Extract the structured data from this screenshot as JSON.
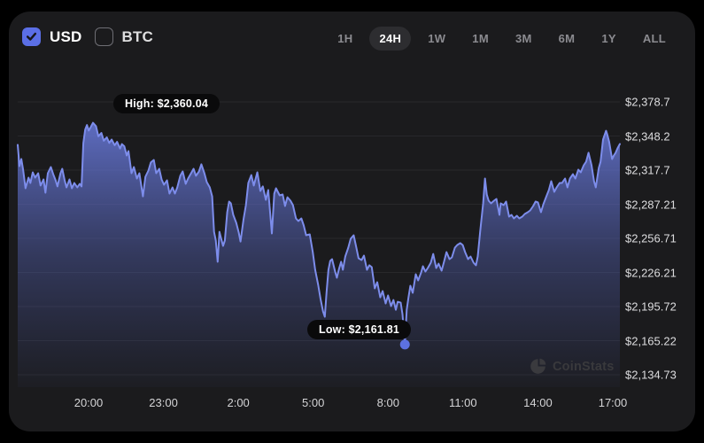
{
  "header": {
    "currency_toggles": [
      {
        "label": "USD",
        "checked": true
      },
      {
        "label": "BTC",
        "checked": false
      }
    ],
    "range_buttons": [
      "1H",
      "24H",
      "1W",
      "1M",
      "3M",
      "6M",
      "1Y",
      "ALL"
    ],
    "active_range": "24H"
  },
  "watermark": {
    "label": "CoinStats"
  },
  "colors": {
    "card_bg": "#1b1b1d",
    "accent_blue": "#5b6fe6",
    "line": "#7d8deb",
    "dot": "#5c71e0",
    "gridline": "#28282b",
    "tooltip_bg": "#0a0a0b"
  },
  "chart_data": {
    "type": "area",
    "title": "24H price chart (USD)",
    "grid": "horizontal",
    "legend": "none",
    "x_ticks": [
      "20:00",
      "23:00",
      "2:00",
      "5:00",
      "8:00",
      "11:00",
      "14:00",
      "17:00"
    ],
    "y_ticks": [
      "$2,378.7",
      "$2,348.2",
      "$2,317.7",
      "$2,287.21",
      "$2,256.71",
      "$2,226.21",
      "$2,195.72",
      "$2,165.22",
      "$2,134.73"
    ],
    "y_range": [
      2134.73,
      2378.7
    ],
    "high": 2360.04,
    "low": 2161.81,
    "high_label": "High: $2,360.04",
    "low_label": "Low: $2,161.81",
    "points": [
      [
        0,
        2340.3
      ],
      [
        0.3,
        2321.3
      ],
      [
        0.6,
        2327.6
      ],
      [
        0.9,
        2318.1
      ],
      [
        1.3,
        2301.5
      ],
      [
        1.8,
        2311
      ],
      [
        2.1,
        2306.2
      ],
      [
        2.5,
        2315.7
      ],
      [
        2.9,
        2311
      ],
      [
        3.4,
        2314.9
      ],
      [
        3.8,
        2303.9
      ],
      [
        4.3,
        2309.4
      ],
      [
        4.6,
        2297.5
      ],
      [
        5,
        2314.9
      ],
      [
        5.5,
        2320.5
      ],
      [
        5.9,
        2314.1
      ],
      [
        6.3,
        2308.6
      ],
      [
        6.6,
        2303.1
      ],
      [
        7.1,
        2314.9
      ],
      [
        7.4,
        2318.9
      ],
      [
        7.8,
        2308.6
      ],
      [
        8.1,
        2302.3
      ],
      [
        8.6,
        2309.4
      ],
      [
        9,
        2301.5
      ],
      [
        9.4,
        2306.2
      ],
      [
        9.9,
        2302.3
      ],
      [
        10.3,
        2305.4
      ],
      [
        10.6,
        2303.1
      ],
      [
        10.9,
        2341.9
      ],
      [
        11.2,
        2354
      ],
      [
        11.5,
        2358
      ],
      [
        11.8,
        2353
      ],
      [
        12.1,
        2356
      ],
      [
        12.5,
        2360.04
      ],
      [
        13,
        2357
      ],
      [
        13.4,
        2348
      ],
      [
        13.9,
        2351
      ],
      [
        14.3,
        2344
      ],
      [
        14.8,
        2347
      ],
      [
        15.2,
        2342
      ],
      [
        15.6,
        2345
      ],
      [
        16.1,
        2340
      ],
      [
        16.5,
        2343
      ],
      [
        17,
        2337
      ],
      [
        17.3,
        2341
      ],
      [
        17.7,
        2339
      ],
      [
        18.1,
        2330.8
      ],
      [
        18.4,
        2334.7
      ],
      [
        18.9,
        2314.9
      ],
      [
        19.3,
        2320.5
      ],
      [
        19.8,
        2310.2
      ],
      [
        20.2,
        2314.9
      ],
      [
        20.8,
        2294.3
      ],
      [
        21.2,
        2311.8
      ],
      [
        21.7,
        2317.3
      ],
      [
        22.1,
        2324.5
      ],
      [
        22.6,
        2326.8
      ],
      [
        23,
        2314.9
      ],
      [
        23.5,
        2318.9
      ],
      [
        23.9,
        2309.4
      ],
      [
        24.3,
        2304.6
      ],
      [
        24.8,
        2308.6
      ],
      [
        25.2,
        2296.7
      ],
      [
        25.7,
        2302.3
      ],
      [
        26.1,
        2296.7
      ],
      [
        26.5,
        2302.3
      ],
      [
        27,
        2312.6
      ],
      [
        27.4,
        2316.5
      ],
      [
        27.9,
        2305.4
      ],
      [
        28.3,
        2310.2
      ],
      [
        28.8,
        2314.9
      ],
      [
        29.2,
        2318.9
      ],
      [
        29.6,
        2312.6
      ],
      [
        30.1,
        2316.5
      ],
      [
        30.5,
        2322.9
      ],
      [
        31,
        2314.9
      ],
      [
        31.4,
        2307
      ],
      [
        31.9,
        2302.3
      ],
      [
        32.3,
        2294.3
      ],
      [
        32.6,
        2262.6
      ],
      [
        32.9,
        2254.7
      ],
      [
        33.2,
        2235.7
      ],
      [
        33.5,
        2262.6
      ],
      [
        33.8,
        2256.3
      ],
      [
        34.1,
        2250
      ],
      [
        34.4,
        2254.7
      ],
      [
        34.8,
        2280.1
      ],
      [
        35.1,
        2289.6
      ],
      [
        35.4,
        2288
      ],
      [
        35.8,
        2277.7
      ],
      [
        36.3,
        2270.6
      ],
      [
        36.7,
        2261.9
      ],
      [
        37,
        2253.9
      ],
      [
        37.5,
        2273.7
      ],
      [
        37.9,
        2286.4
      ],
      [
        38.3,
        2306.2
      ],
      [
        38.8,
        2313.3
      ],
      [
        39.2,
        2303.9
      ],
      [
        39.8,
        2315.7
      ],
      [
        40.3,
        2299.1
      ],
      [
        40.7,
        2303.1
      ],
      [
        41.2,
        2291.2
      ],
      [
        41.6,
        2299.9
      ],
      [
        42.2,
        2261.1
      ],
      [
        42.6,
        2296.7
      ],
      [
        42.9,
        2301.5
      ],
      [
        43.5,
        2295.1
      ],
      [
        44,
        2295.9
      ],
      [
        44.4,
        2285.6
      ],
      [
        44.8,
        2293.5
      ],
      [
        45.3,
        2290.4
      ],
      [
        45.7,
        2286.4
      ],
      [
        46.2,
        2274.5
      ],
      [
        46.6,
        2272.2
      ],
      [
        47.1,
        2274.5
      ],
      [
        47.5,
        2268.2
      ],
      [
        47.9,
        2259.5
      ],
      [
        48.5,
        2260.3
      ],
      [
        49,
        2244.4
      ],
      [
        49.4,
        2228.6
      ],
      [
        49.9,
        2215.1
      ],
      [
        50.3,
        2202.4
      ],
      [
        50.7,
        2191.3
      ],
      [
        51,
        2186.6
      ],
      [
        51.3,
        2208.8
      ],
      [
        51.6,
        2228.6
      ],
      [
        51.9,
        2236.5
      ],
      [
        52.2,
        2238.1
      ],
      [
        52.7,
        2227
      ],
      [
        53,
        2221.5
      ],
      [
        53.4,
        2230.2
      ],
      [
        53.7,
        2235.7
      ],
      [
        54,
        2228.6
      ],
      [
        54.4,
        2240.5
      ],
      [
        54.9,
        2248.4
      ],
      [
        55.3,
        2256.3
      ],
      [
        55.8,
        2259.5
      ],
      [
        56.2,
        2249.2
      ],
      [
        56.6,
        2238.9
      ],
      [
        57.1,
        2237.3
      ],
      [
        57.5,
        2241.3
      ],
      [
        58,
        2228.6
      ],
      [
        58.4,
        2232.6
      ],
      [
        58.8,
        2231
      ],
      [
        59.3,
        2212
      ],
      [
        59.7,
        2217.5
      ],
      [
        60.2,
        2204
      ],
      [
        60.6,
        2209.6
      ],
      [
        61.1,
        2198.5
      ],
      [
        61.5,
        2205.6
      ],
      [
        62,
        2196.1
      ],
      [
        62.4,
        2201.6
      ],
      [
        62.8,
        2192.9
      ],
      [
        63.1,
        2200
      ],
      [
        63.6,
        2199.2
      ],
      [
        63.9,
        2188.9
      ],
      [
        64.3,
        2161.81
      ],
      [
        64.6,
        2192.9
      ],
      [
        64.9,
        2204
      ],
      [
        65.2,
        2214.3
      ],
      [
        65.6,
        2208
      ],
      [
        66.1,
        2224.6
      ],
      [
        66.5,
        2219.1
      ],
      [
        67,
        2226.2
      ],
      [
        67.3,
        2231.8
      ],
      [
        67.7,
        2227
      ],
      [
        68.1,
        2230.2
      ],
      [
        68.6,
        2234.9
      ],
      [
        69,
        2242.8
      ],
      [
        69.5,
        2230.2
      ],
      [
        69.9,
        2234.1
      ],
      [
        70.4,
        2227.8
      ],
      [
        70.8,
        2235.7
      ],
      [
        71.2,
        2244.4
      ],
      [
        71.7,
        2238.1
      ],
      [
        72.1,
        2239.7
      ],
      [
        72.6,
        2248.4
      ],
      [
        73,
        2250.8
      ],
      [
        73.5,
        2252.4
      ],
      [
        73.9,
        2250.8
      ],
      [
        74.3,
        2244.4
      ],
      [
        74.8,
        2238.1
      ],
      [
        75.2,
        2240.5
      ],
      [
        75.7,
        2234.9
      ],
      [
        76.1,
        2232.6
      ],
      [
        76.4,
        2240.5
      ],
      [
        76.8,
        2262.6
      ],
      [
        77.3,
        2288
      ],
      [
        77.6,
        2310.2
      ],
      [
        77.9,
        2295.9
      ],
      [
        78.2,
        2290.4
      ],
      [
        78.6,
        2288
      ],
      [
        79.1,
        2290.4
      ],
      [
        79.5,
        2292
      ],
      [
        80,
        2277.7
      ],
      [
        80.2,
        2288
      ],
      [
        80.7,
        2286.4
      ],
      [
        81.1,
        2289.6
      ],
      [
        81.6,
        2276.1
      ],
      [
        82,
        2277.7
      ],
      [
        82.4,
        2274.5
      ],
      [
        82.9,
        2276.9
      ],
      [
        83.3,
        2274.5
      ],
      [
        83.8,
        2276.1
      ],
      [
        84.2,
        2278.5
      ],
      [
        84.7,
        2280.1
      ],
      [
        85.1,
        2281.7
      ],
      [
        85.6,
        2285.6
      ],
      [
        86,
        2289.6
      ],
      [
        86.4,
        2288.8
      ],
      [
        86.9,
        2280.1
      ],
      [
        87.3,
        2287.2
      ],
      [
        87.8,
        2294.3
      ],
      [
        88.2,
        2299.9
      ],
      [
        88.6,
        2307.8
      ],
      [
        89.1,
        2298.3
      ],
      [
        89.5,
        2302.3
      ],
      [
        90,
        2306.2
      ],
      [
        90.4,
        2306.2
      ],
      [
        90.9,
        2310.2
      ],
      [
        91.3,
        2302.3
      ],
      [
        91.7,
        2310.2
      ],
      [
        92.2,
        2314.1
      ],
      [
        92.6,
        2310.2
      ],
      [
        93.1,
        2318.1
      ],
      [
        93.5,
        2315.7
      ],
      [
        94,
        2322.1
      ],
      [
        94.4,
        2325.2
      ],
      [
        94.8,
        2333.2
      ],
      [
        95.3,
        2322.1
      ],
      [
        95.7,
        2307.8
      ],
      [
        96,
        2302.3
      ],
      [
        96.5,
        2319.7
      ],
      [
        96.8,
        2325.2
      ],
      [
        97.2,
        2345
      ],
      [
        97.7,
        2352.9
      ],
      [
        97.9,
        2349.7
      ],
      [
        98.2,
        2343.4
      ],
      [
        98.7,
        2327.6
      ],
      [
        99,
        2330.8
      ],
      [
        99.3,
        2333.2
      ],
      [
        99.6,
        2337.1
      ],
      [
        100,
        2341.1
      ]
    ]
  }
}
